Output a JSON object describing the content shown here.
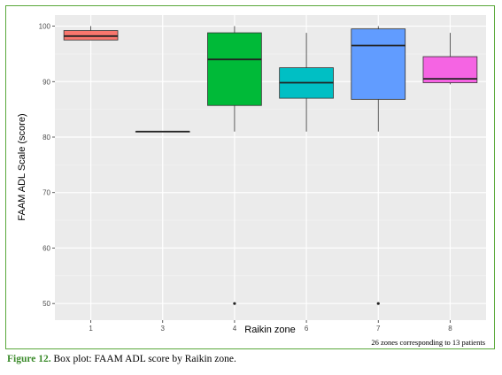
{
  "chart_data": {
    "type": "box",
    "xlabel": "Raikin zone",
    "ylabel": "FAAM ADL Scale (score)",
    "ylim": [
      47,
      102
    ],
    "yticks": [
      50,
      60,
      70,
      80,
      90,
      100
    ],
    "categories": [
      "1",
      "3",
      "4",
      "6",
      "7",
      "8"
    ],
    "boxes": [
      {
        "zone": "1",
        "min": 97.5,
        "q1": 97.5,
        "median": 98.2,
        "q3": 99.2,
        "max": 100,
        "outliers": [],
        "color": "#F8766D"
      },
      {
        "zone": "3",
        "min": 81,
        "q1": 81,
        "median": 81,
        "q3": 81,
        "max": 81,
        "outliers": [],
        "color": "#B79F00"
      },
      {
        "zone": "4",
        "min": 81,
        "q1": 85.7,
        "median": 94,
        "q3": 98.8,
        "max": 100,
        "outliers": [
          50
        ],
        "color": "#00BA38"
      },
      {
        "zone": "6",
        "min": 81,
        "q1": 87,
        "median": 89.8,
        "q3": 92.5,
        "max": 98.8,
        "outliers": [],
        "color": "#00BFC4"
      },
      {
        "zone": "7",
        "min": 81,
        "q1": 86.8,
        "median": 96.5,
        "q3": 99.5,
        "max": 100,
        "outliers": [
          50
        ],
        "color": "#619CFF"
      },
      {
        "zone": "8",
        "min": 89.5,
        "q1": 89.8,
        "median": 90.5,
        "q3": 94.5,
        "max": 98.8,
        "outliers": [],
        "color": "#F564E3"
      }
    ],
    "grid": true,
    "panel_background": "#ebebeb"
  },
  "note": "26 zones corresponding to 13 patients",
  "caption": {
    "label": "Figure 12.",
    "text": " Box plot: FAAM ADL score by Raikin zone."
  },
  "colors": {
    "frame_border": "#5aa83a",
    "caption_label": "#3a8a2a"
  }
}
